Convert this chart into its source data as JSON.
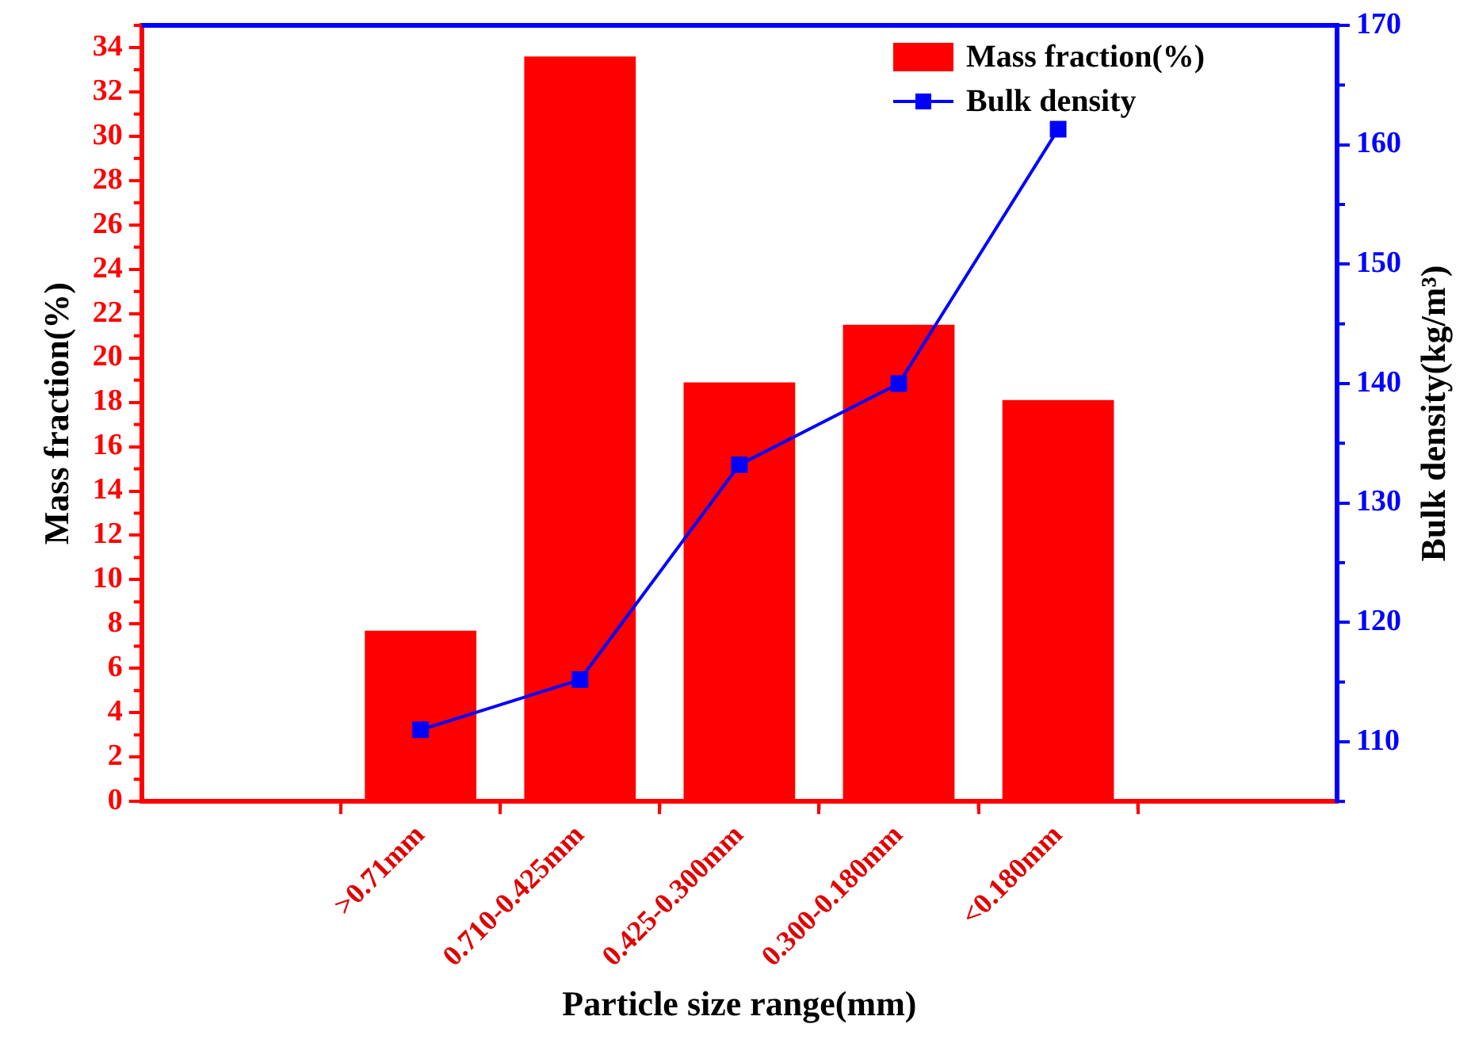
{
  "chart_data": {
    "type": "bar",
    "xlabel": "Particle size range(mm)",
    "ylabel": "Mass fraction(%)",
    "y2label": "Bulk density(kg/m³)",
    "categories": [
      ">0.71mm",
      "0.710-0.425mm",
      "0.425-0.300mm",
      "0.300-0.180mm",
      "<0.180mm"
    ],
    "series": [
      {
        "name": "Mass fraction(%)",
        "color": "#ff0000",
        "values": [
          7.7,
          33.6,
          18.9,
          21.5,
          18.1
        ]
      },
      {
        "name": "Bulk density",
        "type": "line",
        "axis": "y2",
        "color": "#0000ff",
        "values": [
          111.0,
          115.2,
          133.2,
          140.0,
          161.3
        ]
      }
    ],
    "ylim": [
      0,
      35
    ],
    "yticks": [
      0,
      2,
      4,
      6,
      8,
      10,
      12,
      14,
      16,
      18,
      20,
      22,
      24,
      26,
      28,
      30,
      32,
      34
    ],
    "y2lim": [
      105,
      170
    ],
    "y2ticks": [
      110,
      120,
      130,
      140,
      150,
      160,
      170
    ],
    "grid": false,
    "legend": "top right",
    "marker": "square",
    "line_style": "solid"
  }
}
